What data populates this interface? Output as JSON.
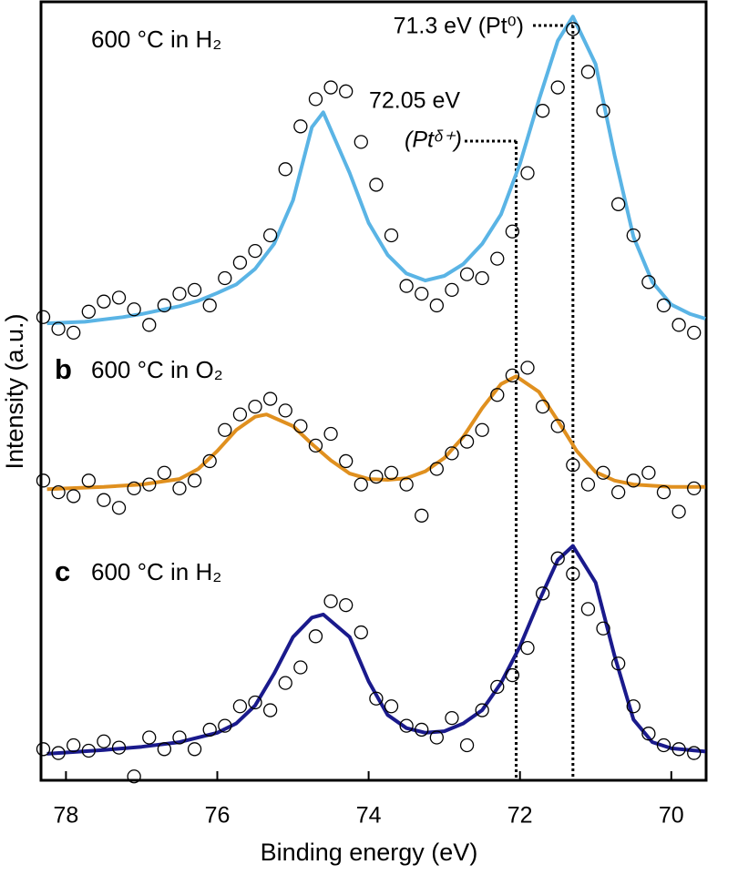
{
  "chart_data": {
    "type": "line",
    "xlabel": "Binding energy (eV)",
    "ylabel": "Intensity (a.u.)",
    "xlim": [
      78.33,
      69.54
    ],
    "xticks": [
      78,
      76,
      74,
      72,
      70
    ],
    "ylim": [
      0,
      100
    ],
    "grid": false,
    "series": [
      {
        "style": "line",
        "color": "#5ab4e5",
        "x": [
          78.25,
          78.0,
          77.75,
          77.5,
          77.25,
          77.0,
          76.75,
          76.5,
          76.25,
          76.0,
          75.75,
          75.5,
          75.25,
          75.0,
          74.75,
          74.6,
          74.25,
          74.0,
          73.75,
          73.5,
          73.25,
          73.0,
          72.75,
          72.5,
          72.25,
          72.0,
          71.75,
          71.5,
          71.3,
          71.0,
          70.75,
          70.5,
          70.25,
          70.0,
          69.75,
          69.55
        ],
        "values": [
          58.7,
          58.8,
          58.9,
          59.2,
          59.5,
          59.9,
          60.4,
          60.9,
          61.6,
          62.6,
          63.7,
          65.7,
          68.9,
          74.5,
          83.9,
          85.8,
          78.0,
          71.6,
          67.5,
          65.1,
          64.2,
          64.8,
          66.3,
          68.9,
          72.7,
          79.2,
          87.4,
          95.0,
          98.1,
          92.0,
          80.3,
          69.8,
          64.0,
          61.1,
          59.9,
          59.3
        ]
      },
      {
        "style": "line",
        "color": "#e0901f",
        "x": [
          78.25,
          77.5,
          77.0,
          76.5,
          76.25,
          76.0,
          75.75,
          75.5,
          75.35,
          75.0,
          74.75,
          74.5,
          74.25,
          74.0,
          73.75,
          73.5,
          73.25,
          73.0,
          72.75,
          72.5,
          72.25,
          72.05,
          71.75,
          71.5,
          71.25,
          71.0,
          70.75,
          70.5,
          70.0,
          69.55
        ],
        "values": [
          37.4,
          37.7,
          38.0,
          38.7,
          40.0,
          42.3,
          45.0,
          46.7,
          47.0,
          45.5,
          43.2,
          41.1,
          39.4,
          38.7,
          38.6,
          38.8,
          39.7,
          41.4,
          44.1,
          47.8,
          50.9,
          51.9,
          49.9,
          46.2,
          42.3,
          39.6,
          38.5,
          38.0,
          37.7,
          37.7
        ]
      },
      {
        "style": "line",
        "color": "#1a1a8c",
        "x": [
          78.25,
          77.5,
          77.0,
          76.5,
          76.0,
          75.75,
          75.5,
          75.25,
          75.0,
          74.75,
          74.6,
          74.25,
          74.0,
          73.75,
          73.5,
          73.25,
          73.0,
          72.75,
          72.5,
          72.25,
          72.0,
          71.75,
          71.5,
          71.3,
          71.0,
          70.75,
          70.5,
          70.25,
          70.0,
          69.55
        ],
        "values": [
          3.4,
          3.9,
          4.3,
          4.9,
          6.1,
          7.3,
          9.6,
          13.7,
          18.4,
          20.9,
          21.3,
          18.4,
          12.7,
          8.4,
          6.7,
          6.1,
          6.3,
          7.3,
          9.0,
          12.5,
          17.2,
          23.0,
          28.3,
          30.1,
          25.4,
          16.0,
          7.8,
          4.9,
          4.1,
          3.7
        ]
      },
      {
        "style": "markers",
        "color": "#000000",
        "x": [
          78.3,
          78.1,
          77.9,
          77.7,
          77.5,
          77.3,
          77.1,
          76.9,
          76.7,
          76.5,
          76.3,
          76.1,
          75.9,
          75.7,
          75.5,
          75.3,
          75.1,
          74.9,
          74.7,
          74.5,
          74.3,
          74.1,
          73.9,
          73.7,
          73.5,
          73.3,
          73.1,
          72.9,
          72.7,
          72.5,
          72.3,
          72.1,
          71.9,
          71.7,
          71.5,
          71.3,
          71.1,
          70.9,
          70.7,
          70.5,
          70.3,
          70.1,
          69.9,
          69.7
        ],
        "values": [
          59.5,
          58.0,
          57.5,
          60.2,
          61.5,
          62.0,
          60.5,
          58.5,
          61.0,
          62.5,
          63.0,
          61.0,
          64.5,
          66.5,
          68.0,
          70.0,
          78.5,
          84.0,
          87.5,
          89.0,
          88.5,
          82.0,
          76.5,
          70.0,
          63.5,
          62.5,
          61.0,
          63.0,
          65.0,
          64.5,
          67.0,
          70.5,
          78.0,
          86.0,
          89.0,
          96.5,
          91.0,
          86.0,
          74.0,
          70.0,
          64.0,
          61.0,
          58.5,
          57.5
        ]
      },
      {
        "style": "markers",
        "color": "#000000",
        "x": [
          78.3,
          78.1,
          77.9,
          77.7,
          77.5,
          77.3,
          77.1,
          76.9,
          76.7,
          76.5,
          76.3,
          76.1,
          75.9,
          75.7,
          75.5,
          75.3,
          75.1,
          74.9,
          74.7,
          74.5,
          74.3,
          74.1,
          73.9,
          73.7,
          73.5,
          73.3,
          73.1,
          72.9,
          72.7,
          72.5,
          72.3,
          72.1,
          71.9,
          71.7,
          71.5,
          71.3,
          71.1,
          70.9,
          70.7,
          70.5,
          70.3,
          70.1,
          69.9,
          69.7
        ],
        "values": [
          38.5,
          37.0,
          36.5,
          38.5,
          36.0,
          35.0,
          37.5,
          38.0,
          39.5,
          37.5,
          38.5,
          41.0,
          45.0,
          47.0,
          48.0,
          49.0,
          47.5,
          45.5,
          43.0,
          44.5,
          41.0,
          38.0,
          39.0,
          39.5,
          38.0,
          34.0,
          40.0,
          42.0,
          43.5,
          45.0,
          49.5,
          52.0,
          53.0,
          48.0,
          45.5,
          40.5,
          38.0,
          39.5,
          37.0,
          38.5,
          39.5,
          37.0,
          34.5,
          37.5
        ]
      },
      {
        "style": "markers",
        "color": "#000000",
        "x": [
          78.3,
          78.1,
          77.9,
          77.7,
          77.5,
          77.3,
          77.1,
          76.9,
          76.7,
          76.5,
          76.3,
          76.1,
          75.9,
          75.7,
          75.5,
          75.3,
          75.1,
          74.9,
          74.7,
          74.5,
          74.3,
          74.1,
          73.9,
          73.7,
          73.5,
          73.3,
          73.1,
          72.9,
          72.7,
          72.5,
          72.3,
          72.1,
          71.9,
          71.7,
          71.5,
          71.3,
          71.1,
          70.9,
          70.7,
          70.5,
          70.3,
          70.1,
          69.9,
          69.7
        ],
        "values": [
          4.0,
          3.5,
          4.5,
          3.8,
          5.0,
          4.2,
          0.5,
          5.5,
          4.0,
          5.5,
          4.0,
          6.5,
          7.0,
          9.5,
          10.0,
          9.0,
          12.5,
          14.5,
          18.5,
          23.0,
          22.5,
          19.0,
          10.5,
          9.5,
          7.0,
          6.5,
          5.5,
          8.0,
          4.5,
          9.0,
          12.0,
          13.5,
          17.0,
          24.0,
          28.5,
          26.5,
          22.0,
          19.5,
          15.0,
          9.5,
          6.0,
          4.5,
          4.0,
          3.5
        ]
      }
    ],
    "reference_lines": [
      {
        "x": 72.05,
        "label": [
          "72.05 eV",
          "(Ptᵟ⁺)"
        ]
      },
      {
        "x": 71.3,
        "label": [
          "71.3 eV (Pt⁰)"
        ]
      }
    ],
    "annotations": [
      {
        "text": "600 °C in H₂"
      },
      {
        "panel": "b",
        "text": "600 °C in O₂"
      },
      {
        "panel": "c",
        "text": "600 °C in H₂"
      }
    ]
  }
}
